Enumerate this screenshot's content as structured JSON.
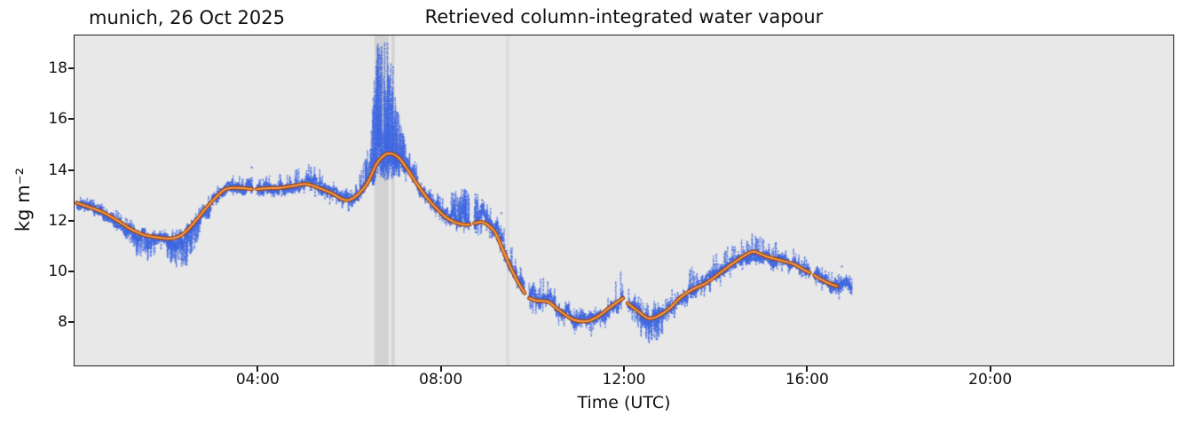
{
  "chart_data": {
    "type": "scatter",
    "title": "Retrieved column-integrated water vapour",
    "corner_label": "munich, 26 Oct 2025",
    "xlabel": "Time (UTC)",
    "ylabel": "kg m⁻²",
    "xlim_hours": [
      0,
      24
    ],
    "ylim": [
      6.3,
      19.3
    ],
    "xticks": {
      "hours": [
        4,
        8,
        12,
        16,
        20
      ],
      "labels": [
        "04:00",
        "08:00",
        "12:00",
        "16:00",
        "20:00"
      ]
    },
    "yticks": [
      8,
      10,
      12,
      14,
      16,
      18
    ],
    "data_start_hour": 0.05,
    "data_end_hour": 16.98,
    "colors": {
      "plot_background": "#e8e8e8",
      "scatter": "#4169e1",
      "line_outer": "#9c4511",
      "line_inner": "#f89c4a",
      "band_dark": "#d3d3d3",
      "band_light": "#dcdcdc",
      "spine": "#1a1a1a"
    },
    "shaded_spans_hours": [
      {
        "x0": 6.55,
        "x1": 6.86,
        "shade": "band_dark"
      },
      {
        "x0": 6.92,
        "x1": 6.99,
        "shade": "band_dark"
      },
      {
        "x0": 9.43,
        "x1": 9.49,
        "shade": "band_light"
      }
    ],
    "gaps_hours": [
      [
        3.88,
        3.98
      ],
      [
        8.63,
        8.73
      ],
      [
        9.83,
        9.93
      ],
      [
        11.98,
        12.08
      ],
      [
        16.06,
        16.16
      ]
    ],
    "smoothed_line_segments": [
      [
        [
          0.05,
          12.7
        ],
        [
          0.3,
          12.55
        ],
        [
          0.6,
          12.35
        ],
        [
          0.9,
          12.05
        ],
        [
          1.2,
          11.7
        ],
        [
          1.5,
          11.45
        ],
        [
          1.8,
          11.35
        ],
        [
          2.1,
          11.3
        ],
        [
          2.35,
          11.45
        ],
        [
          2.6,
          11.9
        ],
        [
          2.85,
          12.45
        ],
        [
          3.1,
          12.95
        ],
        [
          3.3,
          13.25
        ],
        [
          3.5,
          13.3
        ],
        [
          3.7,
          13.28
        ],
        [
          3.88,
          13.25
        ]
      ],
      [
        [
          3.98,
          13.25
        ],
        [
          4.2,
          13.28
        ],
        [
          4.5,
          13.3
        ],
        [
          4.8,
          13.38
        ],
        [
          5.05,
          13.45
        ],
        [
          5.3,
          13.32
        ],
        [
          5.6,
          13.1
        ],
        [
          5.85,
          12.85
        ],
        [
          6.0,
          12.82
        ],
        [
          6.2,
          13.05
        ],
        [
          6.4,
          13.5
        ],
        [
          6.6,
          14.25
        ],
        [
          6.8,
          14.62
        ],
        [
          6.95,
          14.63
        ],
        [
          7.1,
          14.45
        ],
        [
          7.3,
          13.95
        ],
        [
          7.5,
          13.4
        ],
        [
          7.7,
          12.9
        ],
        [
          7.9,
          12.5
        ],
        [
          8.1,
          12.15
        ],
        [
          8.3,
          11.95
        ],
        [
          8.5,
          11.85
        ],
        [
          8.63,
          11.85
        ]
      ],
      [
        [
          8.73,
          11.9
        ],
        [
          8.9,
          11.95
        ],
        [
          9.05,
          11.8
        ],
        [
          9.2,
          11.5
        ],
        [
          9.44,
          10.5
        ],
        [
          9.65,
          9.7
        ],
        [
          9.83,
          9.15
        ]
      ],
      [
        [
          9.93,
          8.95
        ],
        [
          10.1,
          8.85
        ],
        [
          10.35,
          8.8
        ],
        [
          10.6,
          8.45
        ],
        [
          10.9,
          8.1
        ],
        [
          11.2,
          8.05
        ],
        [
          11.45,
          8.25
        ],
        [
          11.7,
          8.6
        ],
        [
          11.98,
          8.95
        ]
      ],
      [
        [
          12.08,
          8.75
        ],
        [
          12.3,
          8.45
        ],
        [
          12.55,
          8.15
        ],
        [
          12.8,
          8.3
        ],
        [
          13.0,
          8.55
        ],
        [
          13.25,
          9.0
        ],
        [
          13.5,
          9.3
        ],
        [
          13.8,
          9.55
        ],
        [
          14.1,
          9.95
        ],
        [
          14.4,
          10.35
        ],
        [
          14.7,
          10.7
        ],
        [
          14.85,
          10.78
        ],
        [
          15.1,
          10.6
        ],
        [
          15.4,
          10.45
        ],
        [
          15.7,
          10.3
        ],
        [
          15.9,
          10.1
        ],
        [
          16.06,
          9.95
        ]
      ],
      [
        [
          16.16,
          9.85
        ],
        [
          16.4,
          9.6
        ],
        [
          16.65,
          9.42
        ]
      ]
    ],
    "scatter_envelope_t_down_up": [
      [
        0.05,
        0.3,
        0.35
      ],
      [
        0.5,
        0.3,
        0.4
      ],
      [
        1.0,
        0.4,
        0.45
      ],
      [
        1.35,
        0.95,
        0.35
      ],
      [
        1.65,
        1.0,
        0.3
      ],
      [
        1.9,
        0.5,
        0.45
      ],
      [
        2.2,
        1.2,
        0.35
      ],
      [
        2.45,
        1.5,
        0.3
      ],
      [
        2.7,
        0.9,
        0.35
      ],
      [
        3.0,
        0.45,
        0.4
      ],
      [
        3.5,
        0.3,
        0.5
      ],
      [
        4.0,
        0.35,
        0.5
      ],
      [
        4.5,
        0.4,
        0.55
      ],
      [
        5.0,
        0.45,
        0.75
      ],
      [
        5.2,
        0.5,
        1.05
      ],
      [
        5.5,
        0.45,
        0.55
      ],
      [
        5.9,
        0.6,
        0.45
      ],
      [
        6.2,
        0.45,
        0.55
      ],
      [
        6.45,
        0.5,
        1.6
      ],
      [
        6.6,
        0.7,
        4.7
      ],
      [
        6.8,
        1.0,
        4.65
      ],
      [
        6.95,
        1.0,
        3.6
      ],
      [
        7.1,
        0.8,
        1.6
      ],
      [
        7.3,
        0.6,
        0.9
      ],
      [
        7.6,
        0.65,
        0.75
      ],
      [
        8.0,
        0.55,
        0.7
      ],
      [
        8.35,
        0.6,
        1.35
      ],
      [
        8.6,
        0.65,
        1.45
      ],
      [
        9.0,
        0.55,
        0.95
      ],
      [
        9.3,
        0.55,
        1.05
      ],
      [
        9.6,
        0.6,
        0.85
      ],
      [
        10.0,
        0.55,
        0.7
      ],
      [
        10.4,
        0.6,
        1.1
      ],
      [
        10.8,
        0.65,
        0.6
      ],
      [
        11.1,
        0.8,
        0.55
      ],
      [
        11.4,
        0.75,
        0.6
      ],
      [
        11.9,
        0.55,
        1.15
      ],
      [
        12.15,
        0.6,
        1.0
      ],
      [
        12.4,
        1.0,
        0.55
      ],
      [
        12.65,
        1.05,
        0.6
      ],
      [
        13.0,
        0.65,
        0.7
      ],
      [
        13.4,
        0.55,
        0.9
      ],
      [
        13.8,
        0.55,
        0.85
      ],
      [
        14.2,
        0.5,
        0.85
      ],
      [
        14.6,
        0.5,
        0.85
      ],
      [
        15.0,
        0.5,
        0.7
      ],
      [
        15.4,
        0.55,
        0.65
      ],
      [
        15.8,
        0.5,
        0.6
      ],
      [
        16.3,
        0.5,
        0.55
      ],
      [
        16.7,
        0.55,
        0.5
      ],
      [
        16.98,
        0.5,
        0.4
      ]
    ],
    "isolated_points": [
      [
        3.87,
        14.1
      ],
      [
        9.32,
        12.3
      ],
      [
        16.76,
        10.2
      ]
    ]
  }
}
